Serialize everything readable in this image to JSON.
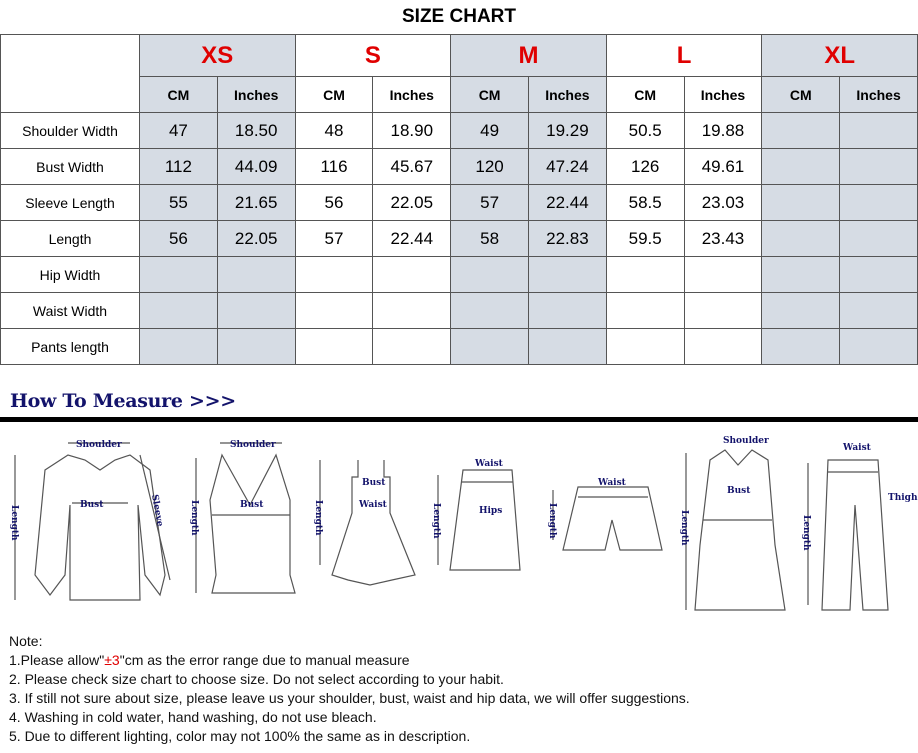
{
  "title": "SIZE CHART",
  "sizes": [
    "XS",
    "S",
    "M",
    "L",
    "XL"
  ],
  "units": [
    "CM",
    "Inches"
  ],
  "rows": [
    {
      "label": "Shoulder Width",
      "values": [
        "47",
        "18.50",
        "48",
        "18.90",
        "49",
        "19.29",
        "50.5",
        "19.88",
        "",
        ""
      ]
    },
    {
      "label": "Bust Width",
      "values": [
        "112",
        "44.09",
        "116",
        "45.67",
        "120",
        "47.24",
        "126",
        "49.61",
        "",
        ""
      ]
    },
    {
      "label": "Sleeve Length",
      "values": [
        "55",
        "21.65",
        "56",
        "22.05",
        "57",
        "22.44",
        "58.5",
        "23.03",
        "",
        ""
      ]
    },
    {
      "label": "Length",
      "values": [
        "56",
        "22.05",
        "57",
        "22.44",
        "58",
        "22.83",
        "59.5",
        "23.43",
        "",
        ""
      ]
    },
    {
      "label": "Hip Width",
      "values": [
        "",
        "",
        "",
        "",
        "",
        "",
        "",
        "",
        "",
        ""
      ]
    },
    {
      "label": "Waist Width",
      "values": [
        "",
        "",
        "",
        "",
        "",
        "",
        "",
        "",
        "",
        ""
      ]
    },
    {
      "label": "Pants length",
      "values": [
        "",
        "",
        "",
        "",
        "",
        "",
        "",
        "",
        "",
        ""
      ]
    }
  ],
  "measure": {
    "heading": "How To Measure >>>",
    "labels": {
      "shoulder": "Shoulder",
      "bust": "Bust",
      "sleeve": "Sleeve",
      "length": "Length",
      "waist": "Waist",
      "hips": "Hips",
      "thigh": "Thigh"
    }
  },
  "notes": {
    "heading": "Note:",
    "line1_pre": "1.Please allow\"",
    "line1_red": "±3",
    "line1_post": "\"cm as the error range due to manual measure",
    "lines": [
      "2. Please check size chart to choose size. Do not select according to your habit.",
      "3. If still not sure about size, please leave us your shoulder, bust, waist and hip data, we will offer suggestions.",
      "4. Washing in cold water, hand washing, do not use bleach.",
      "5. Due to different lighting, color may not 100% the same as in description."
    ]
  },
  "colors": {
    "size_label": "#e00000",
    "shaded_column": "#d6dce4",
    "heading": "#13136b"
  }
}
